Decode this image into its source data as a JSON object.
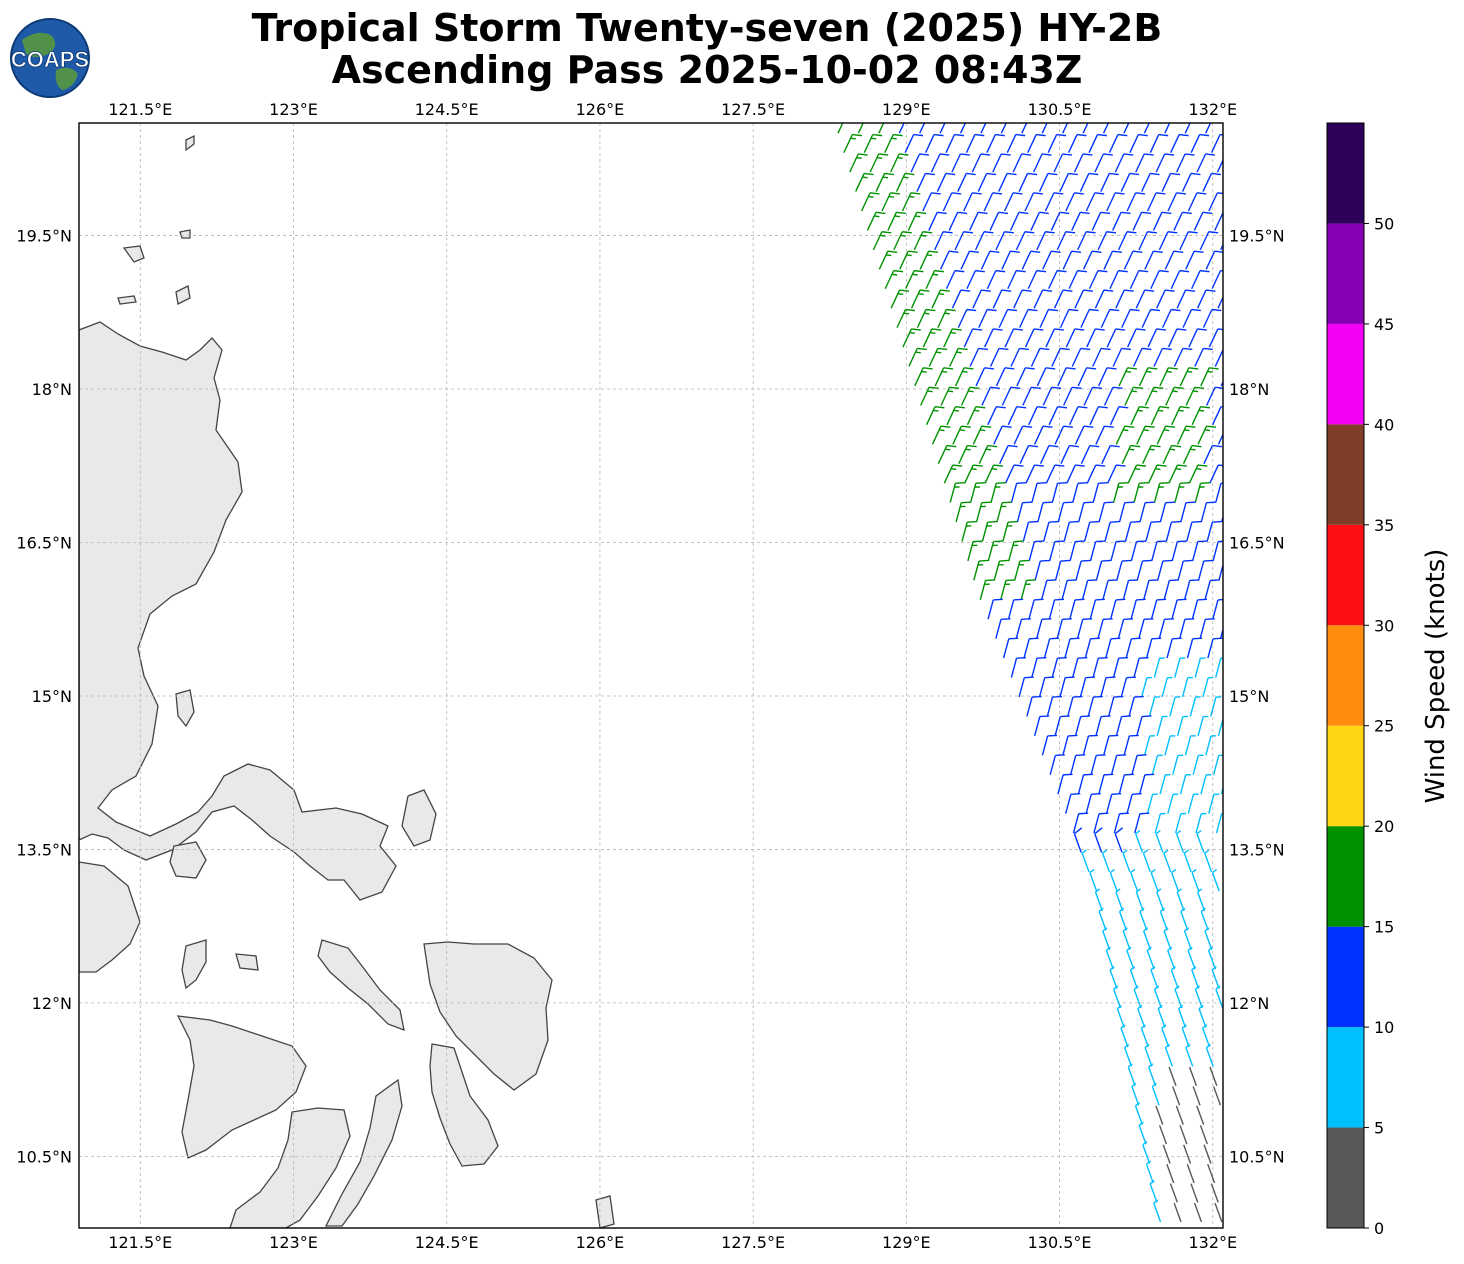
{
  "title": {
    "line1": "Tropical Storm Twenty-seven (2025) HY-2B",
    "line2": "Ascending Pass 2025-10-02 08:43Z"
  },
  "logo": {
    "text": "COAPS"
  },
  "map": {
    "lon_range": [
      120.9,
      132.1
    ],
    "lat_range": [
      9.8,
      20.6
    ],
    "lon_ticks": [
      {
        "value": 121.5,
        "label": "121.5°E"
      },
      {
        "value": 123.0,
        "label": "123°E"
      },
      {
        "value": 124.5,
        "label": "124.5°E"
      },
      {
        "value": 126.0,
        "label": "126°E"
      },
      {
        "value": 127.5,
        "label": "127.5°E"
      },
      {
        "value": 129.0,
        "label": "129°E"
      },
      {
        "value": 130.5,
        "label": "130.5°E"
      },
      {
        "value": 132.0,
        "label": "132°E"
      }
    ],
    "lat_ticks": [
      {
        "value": 19.5,
        "label": "19.5°N"
      },
      {
        "value": 18.0,
        "label": "18°N"
      },
      {
        "value": 16.5,
        "label": "16.5°N"
      },
      {
        "value": 15.0,
        "label": "15°N"
      },
      {
        "value": 13.5,
        "label": "13.5°N"
      },
      {
        "value": 12.0,
        "label": "12°N"
      },
      {
        "value": 10.5,
        "label": "10.5°N"
      }
    ],
    "grid": true,
    "land_color": "#e6e6e6",
    "coastline_color": "#444444"
  },
  "colorbar": {
    "label": "Wind Speed (knots)",
    "ticks": [
      "0",
      "5",
      "10",
      "15",
      "20",
      "25",
      "30",
      "35",
      "40",
      "45",
      "50"
    ],
    "bands": [
      {
        "from": 0,
        "to": 5,
        "color": "#585858"
      },
      {
        "from": 5,
        "to": 10,
        "color": "#00bfff"
      },
      {
        "from": 10,
        "to": 15,
        "color": "#0033ff"
      },
      {
        "from": 15,
        "to": 20,
        "color": "#009100"
      },
      {
        "from": 20,
        "to": 25,
        "color": "#ffd611"
      },
      {
        "from": 25,
        "to": 30,
        "color": "#ff8c0e"
      },
      {
        "from": 30,
        "to": 35,
        "color": "#ff0e14"
      },
      {
        "from": 35,
        "to": 40,
        "color": "#7f3d28"
      },
      {
        "from": 40,
        "to": 45,
        "color": "#f400f4"
      },
      {
        "from": 45,
        "to": 50,
        "color": "#8800b5"
      },
      {
        "from": 50,
        "to": 55,
        "color": "#2d0059"
      }
    ]
  },
  "wind_field": {
    "swath_lat_range": [
      9.8,
      20.6
    ],
    "swath_edges": [
      {
        "lat": 20.6,
        "west_lon": 128.3,
        "east_lon": 132.1
      },
      {
        "lat": 16.0,
        "west_lon": 129.7,
        "east_lon": 132.1
      },
      {
        "lat": 13.0,
        "west_lon": 130.9,
        "east_lon": 132.1
      },
      {
        "lat": 9.8,
        "west_lon": 131.5,
        "east_lon": 132.1
      }
    ],
    "speed_zones": [
      {
        "description": "west edge north",
        "speed_kt": 17
      },
      {
        "description": "core",
        "speed_kt": 12
      },
      {
        "description": "south",
        "speed_kt": 8
      },
      {
        "description": "far south-east",
        "speed_kt": 4
      }
    ]
  }
}
